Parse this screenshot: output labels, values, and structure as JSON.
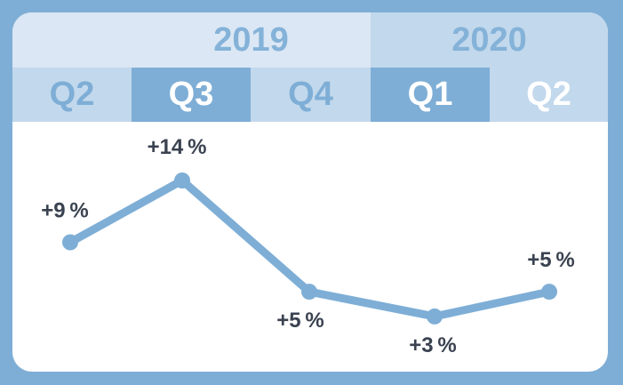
{
  "header": {
    "years": [
      "2019",
      "2020"
    ],
    "quarters": [
      "Q2",
      "Q3",
      "Q4",
      "Q1",
      "Q2"
    ]
  },
  "colors": {
    "background": "#7eaed6",
    "line": "#7eaed6",
    "label_text": "#3a4250",
    "header_light": "#dbe7f4",
    "header_mid": "#c2d8ec",
    "header_dark": "#7eaed6"
  },
  "chart_data": {
    "type": "line",
    "categories": [
      "2019 Q2",
      "2019 Q3",
      "2019 Q4",
      "2020 Q1",
      "2020 Q2"
    ],
    "values": [
      9,
      14,
      5,
      3,
      5
    ],
    "labels": [
      "+9 %",
      "+14 %",
      "+5 %",
      "+3 %",
      "+5 %"
    ],
    "unit": "%",
    "grid": false,
    "legend": "none"
  }
}
